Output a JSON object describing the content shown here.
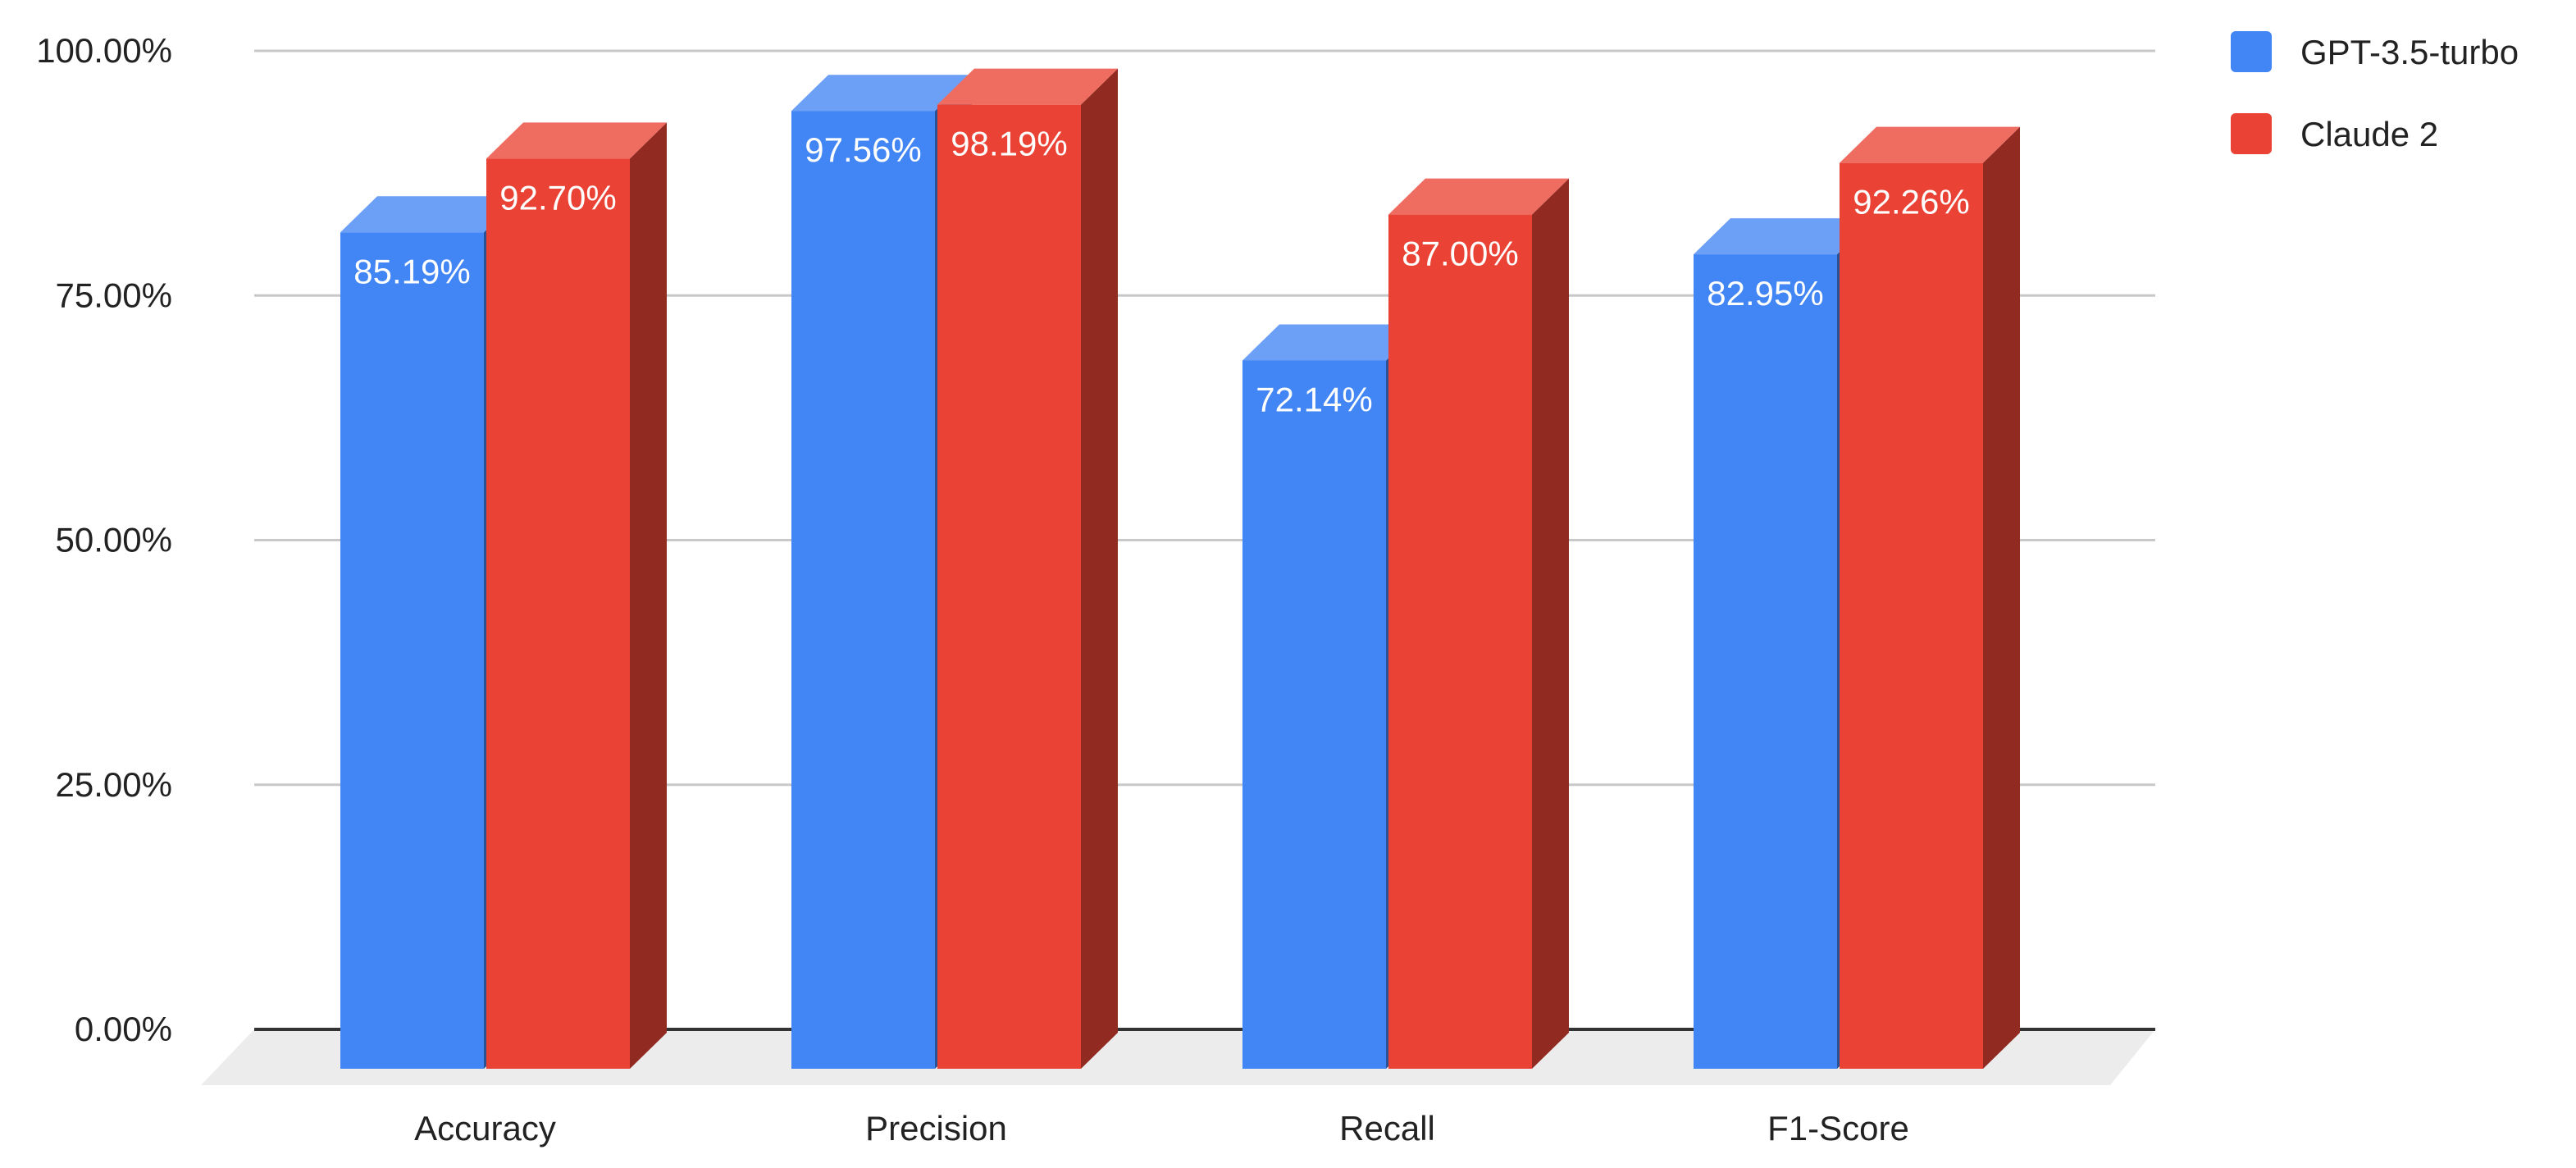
{
  "chart_data": {
    "type": "bar",
    "style": "3d-column",
    "categories": [
      "Accuracy",
      "Precision",
      "Recall",
      "F1-Score"
    ],
    "series": [
      {
        "name": "GPT-3.5-turbo",
        "color": "#4285f4",
        "values": [
          85.19,
          97.56,
          72.14,
          82.95
        ],
        "labels": [
          "85.19%",
          "97.56%",
          "72.14%",
          "82.95%"
        ]
      },
      {
        "name": "Claude 2",
        "color": "#ea4335",
        "values": [
          92.7,
          98.19,
          87.0,
          92.26
        ],
        "labels": [
          "92.70%",
          "98.19%",
          "87.00%",
          "92.26%"
        ]
      }
    ],
    "yticks": [
      0,
      25,
      50,
      75,
      100
    ],
    "ytick_labels": [
      "0.00%",
      "25.00%",
      "50.00%",
      "75.00%",
      "100.00%"
    ],
    "ylim": [
      0,
      100
    ],
    "title": "",
    "xlabel": "",
    "ylabel": "",
    "grid": true,
    "legend_position": "top-right"
  }
}
